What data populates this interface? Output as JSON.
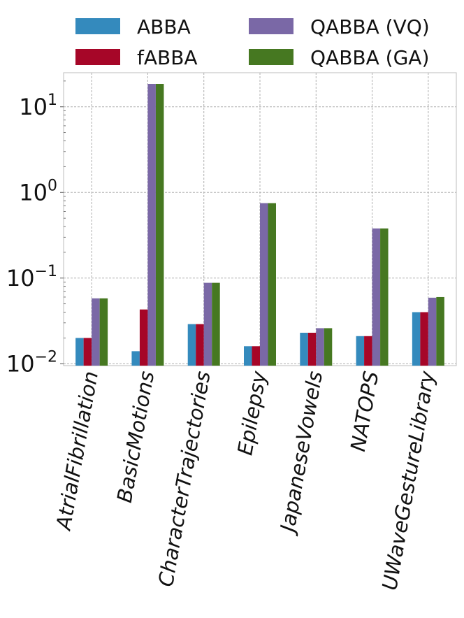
{
  "chart_data": {
    "type": "bar",
    "yscale": "log",
    "ylim": [
      0.0095,
      25
    ],
    "grid": true,
    "legend_position": "top",
    "title": "",
    "xlabel": "",
    "ylabel": "",
    "categories": [
      "AtrialFibrillation",
      "BasicMotions",
      "CharacterTrajectories",
      "Epilepsy",
      "JapaneseVowels",
      "NATOPS",
      "UWaveGestureLibrary"
    ],
    "series": [
      {
        "name": "ABBA",
        "color": "#348abd",
        "values": [
          0.02,
          0.014,
          0.029,
          0.016,
          0.023,
          0.021,
          0.04
        ]
      },
      {
        "name": "fABBA",
        "color": "#a60628",
        "values": [
          0.02,
          0.043,
          0.029,
          0.016,
          0.023,
          0.021,
          0.04
        ]
      },
      {
        "name": "QABBA (VQ)",
        "color": "#7a68a6",
        "values": [
          0.058,
          18.5,
          0.088,
          0.75,
          0.026,
          0.38,
          0.059
        ]
      },
      {
        "name": "QABBA (GA)",
        "color": "#467821",
        "values": [
          0.058,
          18.5,
          0.088,
          0.75,
          0.026,
          0.38,
          0.06
        ]
      }
    ],
    "yticks": [
      {
        "value": 0.01,
        "base": "10",
        "exp": "−2"
      },
      {
        "value": 0.1,
        "base": "10",
        "exp": "−1"
      },
      {
        "value": 1,
        "base": "10",
        "exp": "0"
      },
      {
        "value": 10,
        "base": "10",
        "exp": "1"
      }
    ]
  }
}
